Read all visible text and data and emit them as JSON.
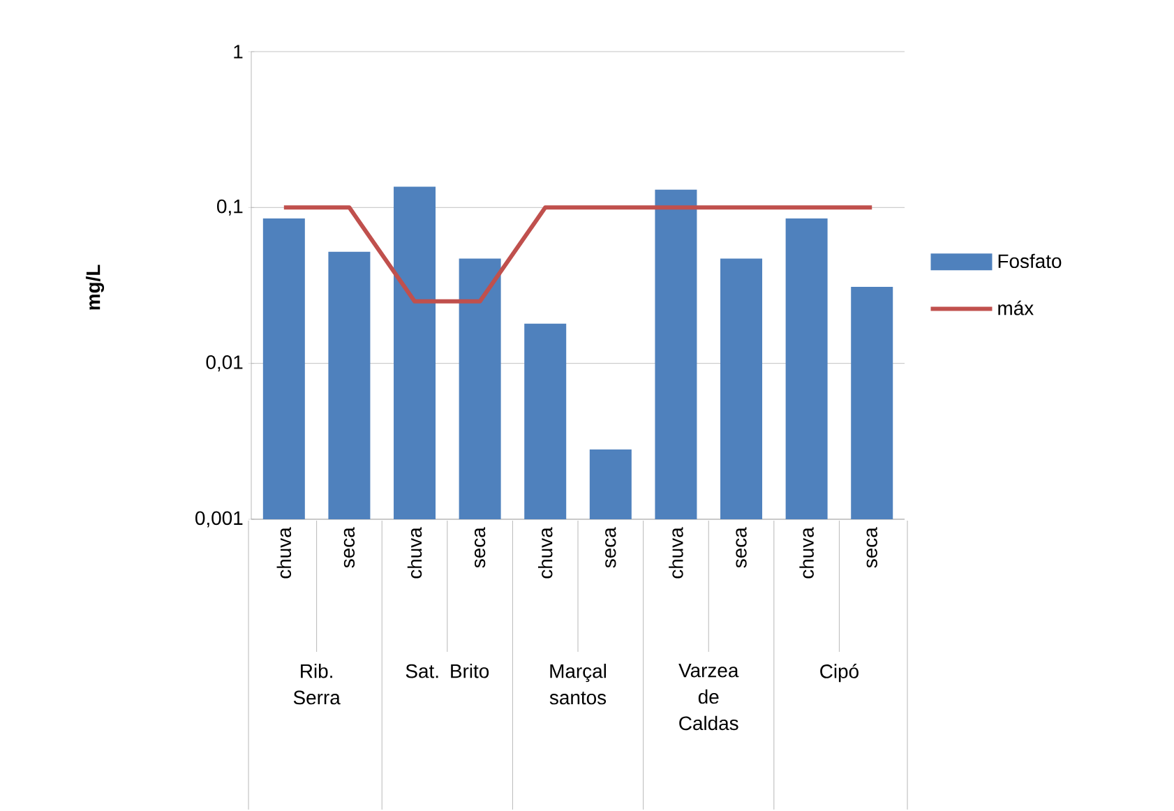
{
  "chart_data": {
    "type": "bar",
    "ylabel": "mg/L",
    "categories": [
      "chuva",
      "seca",
      "chuva",
      "seca",
      "chuva",
      "seca",
      "chuva",
      "seca",
      "chuva",
      "seca"
    ],
    "annotations": [
      "Rib. Serra",
      "Sat. Brito",
      "Marçal santos",
      "Varzea de Caldas",
      "Cipó"
    ],
    "series": [
      {
        "name": "Fosfato",
        "color": "#4f81bd",
        "values": [
          0.085,
          0.052,
          0.136,
          0.047,
          0.018,
          0.0028,
          0.13,
          0.047,
          0.085,
          0.031
        ]
      },
      {
        "name": "máx",
        "type": "line",
        "color": "#c0504d",
        "values": [
          0.1,
          0.1,
          0.025,
          0.025,
          0.1,
          0.1,
          0.1,
          0.1,
          0.1,
          0.1
        ]
      }
    ],
    "log": "y",
    "ylim": [
      0.001,
      1
    ],
    "yticks": [
      {
        "value": 0.001,
        "label": "0,001"
      },
      {
        "value": 0.01,
        "label": "0,01"
      },
      {
        "value": 0.1,
        "label": "0,1"
      },
      1
    ],
    "grid": "y",
    "legend": "right"
  }
}
